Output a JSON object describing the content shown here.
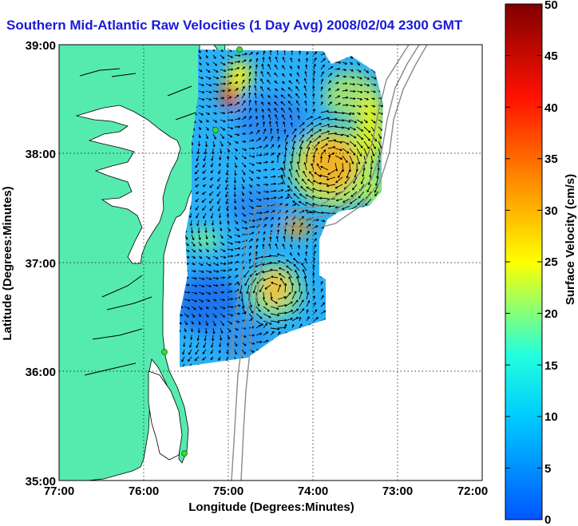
{
  "title": "Southern Mid-Atlantic Raw Velocities (1 Day Avg) 2008/02/04 2300 GMT",
  "map": {
    "xlabel": "Longitude (Degrees:Minutes)",
    "ylabel": "Latitude (Degrees:Minutes)",
    "x_ticks": [
      "77:00",
      "76:00",
      "75:00",
      "74:00",
      "73:00",
      "72:00"
    ],
    "y_ticks": [
      "39:00",
      "38:00",
      "37:00",
      "36:00",
      "35:00"
    ],
    "land_color": "#55ebae",
    "water_color": "#ffffff",
    "station_color": "#33dd33"
  },
  "colorbar": {
    "label": "Surface Velocity (cm/s)",
    "ticks": [
      "50",
      "45",
      "40",
      "35",
      "30",
      "25",
      "20",
      "15",
      "10",
      "5",
      "0"
    ],
    "min": 0,
    "max": 50,
    "colors_low_to_high": [
      "#0055ff",
      "#00ccff",
      "#22ffdd",
      "#ffff00",
      "#ff8800",
      "#ff1100",
      "#800000"
    ]
  }
}
